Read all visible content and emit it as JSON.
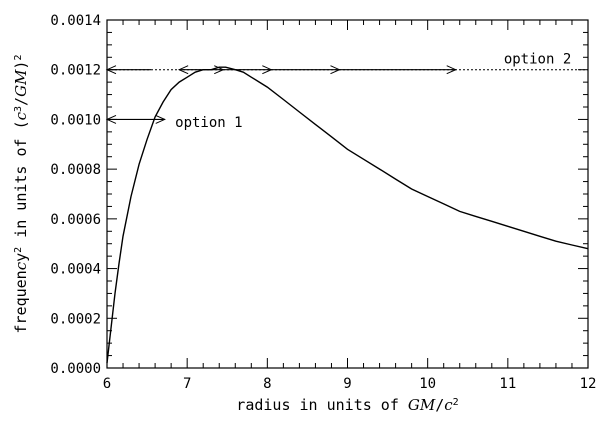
{
  "chart_data": {
    "type": "line",
    "title": "",
    "xlabel": "radius in units of GM/c²",
    "ylabel": "frequency² in units of (c³/GM)²",
    "xlim": [
      6,
      12
    ],
    "ylim": [
      0,
      0.0014
    ],
    "xticks": [
      "6",
      "7",
      "8",
      "9",
      "10",
      "11",
      "12"
    ],
    "yticks": [
      "0.0000",
      "0.0002",
      "0.0004",
      "0.0006",
      "0.0008",
      "0.0010",
      "0.0012",
      "0.0014"
    ],
    "series": [
      {
        "style": "solid",
        "x": [
          6.0,
          6.05,
          6.1,
          6.15,
          6.2,
          6.3,
          6.4,
          6.5,
          6.6,
          6.7,
          6.8,
          6.9,
          7.0,
          7.1,
          7.2,
          7.3,
          7.4,
          7.48,
          7.6,
          7.7,
          7.8,
          7.9,
          8.0,
          8.2,
          8.4,
          8.6,
          8.8,
          9.0,
          9.2,
          9.4,
          9.6,
          9.8,
          10.0,
          10.2,
          10.4,
          10.6,
          10.8,
          11.0,
          11.2,
          11.4,
          11.6,
          11.8,
          12.0
        ],
        "y": [
          2e-05,
          0.00016,
          0.0003,
          0.00042,
          0.00053,
          0.00069,
          0.00082,
          0.00092,
          0.00101,
          0.00107,
          0.00112,
          0.00115,
          0.00117,
          0.00119,
          0.0012,
          0.0012,
          0.00121,
          0.00121,
          0.0012,
          0.00119,
          0.00117,
          0.00115,
          0.00113,
          0.00108,
          0.00103,
          0.00098,
          0.00093,
          0.00088,
          0.00084,
          0.0008,
          0.00076,
          0.00072,
          0.00069,
          0.00066,
          0.00063,
          0.00061,
          0.00059,
          0.00057,
          0.00055,
          0.00053,
          0.00051,
          0.000495,
          0.00048
        ]
      }
    ],
    "annotations": [
      {
        "text": "option 1",
        "x": 6.85,
        "y": 0.00099,
        "arrow": {
          "x1": 6.0,
          "x2": 6.72,
          "y": 0.001
        }
      },
      {
        "text": "option 2",
        "x": 10.95,
        "y": 0.00122,
        "line": {
          "x1": 6.0,
          "x2": 12.0,
          "y": 0.0012
        },
        "arrow_tips": [
          {
            "x": 6.0,
            "dir": "left"
          },
          {
            "x": 6.9,
            "dir": "left"
          },
          {
            "x": 7.45,
            "dir": "right"
          },
          {
            "x": 8.05,
            "dir": "right"
          },
          {
            "x": 8.9,
            "dir": "right"
          },
          {
            "x": 10.35,
            "dir": "right"
          }
        ]
      }
    ]
  }
}
